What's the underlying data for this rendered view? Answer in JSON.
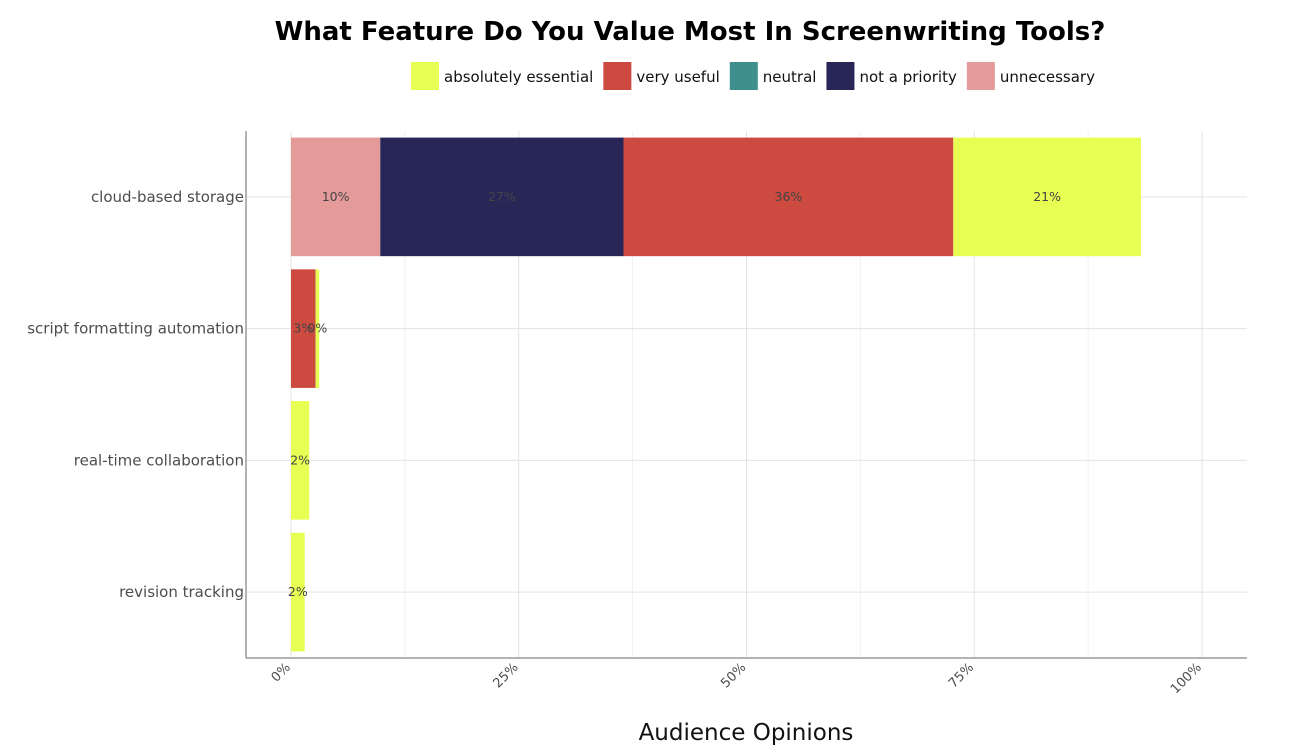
{
  "chart_data": {
    "type": "bar",
    "orientation": "horizontal",
    "stacked": true,
    "title": "What Feature Do You Value Most In Screenwriting Tools?",
    "xlabel": "Audience Opinions",
    "ylabel": "",
    "xlim": [
      0,
      1
    ],
    "x_ticks": [
      0,
      0.25,
      0.5,
      0.75,
      1.0
    ],
    "x_tick_labels": [
      "0%",
      "25%",
      "50%",
      "75%",
      "100%"
    ],
    "grid": true,
    "legend_position": "top",
    "categories": [
      "cloud-based storage",
      "script formatting automation",
      "real-time collaboration",
      "revision tracking"
    ],
    "legend_order": [
      "absolutely essential",
      "very useful",
      "neutral",
      "not a priority",
      "unnecessary"
    ],
    "stack_order": [
      "unnecessary",
      "not a priority",
      "neutral",
      "very useful",
      "absolutely essential"
    ],
    "series": [
      {
        "name": "absolutely essential",
        "color": "#e6ff52",
        "values": [
          0.206,
          0.004,
          0.02,
          0.015
        ],
        "labels": [
          "21%",
          "0%",
          "2%",
          "2%"
        ]
      },
      {
        "name": "very useful",
        "color": "#cc4a40",
        "values": [
          0.362,
          0.027,
          0,
          0
        ],
        "labels": [
          "36%",
          "3%",
          "",
          ""
        ]
      },
      {
        "name": "neutral",
        "color": "#3f8f8f",
        "values": [
          0,
          0,
          0,
          0
        ],
        "labels": [
          "",
          "",
          "",
          ""
        ]
      },
      {
        "name": "not a priority",
        "color": "#282657",
        "values": [
          0.267,
          0,
          0,
          0
        ],
        "labels": [
          "27%",
          "",
          "",
          ""
        ]
      },
      {
        "name": "unnecessary",
        "color": "#e49a99",
        "values": [
          0.098,
          0,
          0,
          0
        ],
        "labels": [
          "10%",
          "",
          "",
          ""
        ]
      }
    ]
  }
}
